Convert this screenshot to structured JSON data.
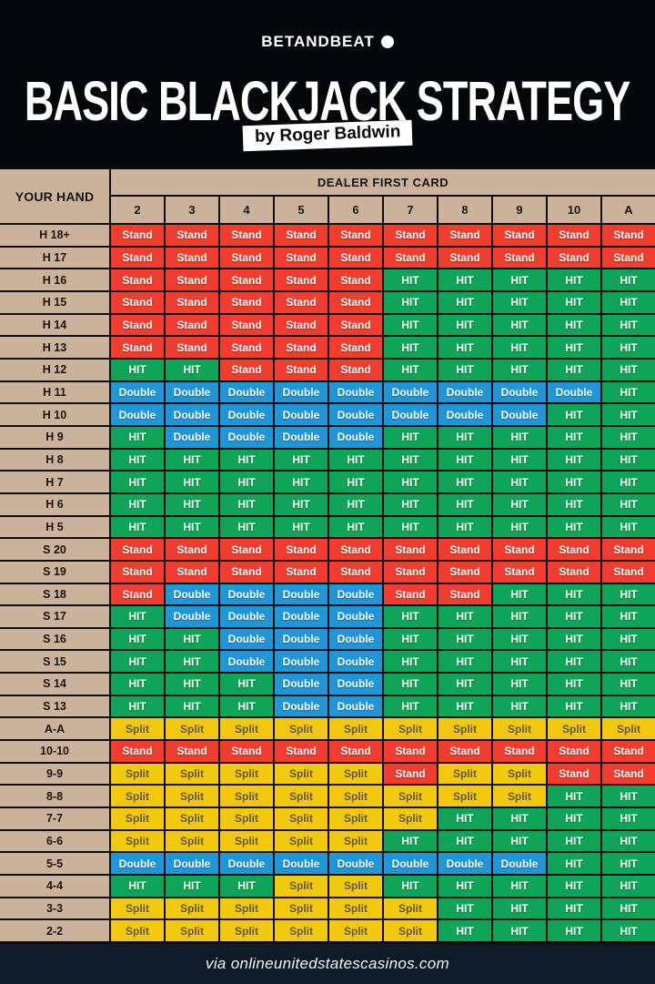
{
  "header": {
    "brand": "BETANDBEAT",
    "title": "BASIC BLACKJACK STRATEGY",
    "subtitle": "by Roger Baldwin"
  },
  "footer": {
    "credit": "via onlineunitedstatescasinos.com"
  },
  "colors": {
    "background": "#04080b",
    "footer_bar": "#0d1b28",
    "table_header_tan": "#cbb39b",
    "grid_line": "#0d0d0d",
    "stand_red": "#f13c2e",
    "hit_green": "#0fa558",
    "double_blue": "#1f96d7",
    "split_yellow": "#f3c90e",
    "split_text": "#5f584e",
    "action_text": "#ffffff"
  },
  "chart_data": {
    "type": "table",
    "title": "Basic Blackjack Strategy",
    "row_header": "YOUR HAND",
    "col_group_header": "DEALER FIRST CARD",
    "columns": [
      "2",
      "3",
      "4",
      "5",
      "6",
      "7",
      "8",
      "9",
      "10",
      "A"
    ],
    "legend": {
      "Stand": {
        "bg": "#f13c2e",
        "fg": "#ffffff"
      },
      "HIT": {
        "bg": "#0fa558",
        "fg": "#ffffff"
      },
      "Double": {
        "bg": "#1f96d7",
        "fg": "#ffffff"
      },
      "Split": {
        "bg": "#f3c90e",
        "fg": "#5f584e"
      }
    },
    "rows": [
      {
        "hand": "H 18+",
        "actions": [
          "Stand",
          "Stand",
          "Stand",
          "Stand",
          "Stand",
          "Stand",
          "Stand",
          "Stand",
          "Stand",
          "Stand"
        ]
      },
      {
        "hand": "H 17",
        "actions": [
          "Stand",
          "Stand",
          "Stand",
          "Stand",
          "Stand",
          "Stand",
          "Stand",
          "Stand",
          "Stand",
          "Stand"
        ]
      },
      {
        "hand": "H 16",
        "actions": [
          "Stand",
          "Stand",
          "Stand",
          "Stand",
          "Stand",
          "HIT",
          "HIT",
          "HIT",
          "HIT",
          "HIT"
        ]
      },
      {
        "hand": "H 15",
        "actions": [
          "Stand",
          "Stand",
          "Stand",
          "Stand",
          "Stand",
          "HIT",
          "HIT",
          "HIT",
          "HIT",
          "HIT"
        ]
      },
      {
        "hand": "H 14",
        "actions": [
          "Stand",
          "Stand",
          "Stand",
          "Stand",
          "Stand",
          "HIT",
          "HIT",
          "HIT",
          "HIT",
          "HIT"
        ]
      },
      {
        "hand": "H 13",
        "actions": [
          "Stand",
          "Stand",
          "Stand",
          "Stand",
          "Stand",
          "HIT",
          "HIT",
          "HIT",
          "HIT",
          "HIT"
        ]
      },
      {
        "hand": "H 12",
        "actions": [
          "HIT",
          "HIT",
          "Stand",
          "Stand",
          "Stand",
          "HIT",
          "HIT",
          "HIT",
          "HIT",
          "HIT"
        ]
      },
      {
        "hand": "H 11",
        "actions": [
          "Double",
          "Double",
          "Double",
          "Double",
          "Double",
          "Double",
          "Double",
          "Double",
          "Double",
          "HIT"
        ]
      },
      {
        "hand": "H 10",
        "actions": [
          "Double",
          "Double",
          "Double",
          "Double",
          "Double",
          "Double",
          "Double",
          "Double",
          "HIT",
          "HIT"
        ]
      },
      {
        "hand": "H 9",
        "actions": [
          "HIT",
          "Double",
          "Double",
          "Double",
          "Double",
          "HIT",
          "HIT",
          "HIT",
          "HIT",
          "HIT"
        ]
      },
      {
        "hand": "H 8",
        "actions": [
          "HIT",
          "HIT",
          "HIT",
          "HIT",
          "HIT",
          "HIT",
          "HIT",
          "HIT",
          "HIT",
          "HIT"
        ]
      },
      {
        "hand": "H 7",
        "actions": [
          "HIT",
          "HIT",
          "HIT",
          "HIT",
          "HIT",
          "HIT",
          "HIT",
          "HIT",
          "HIT",
          "HIT"
        ]
      },
      {
        "hand": "H 6",
        "actions": [
          "HIT",
          "HIT",
          "HIT",
          "HIT",
          "HIT",
          "HIT",
          "HIT",
          "HIT",
          "HIT",
          "HIT"
        ]
      },
      {
        "hand": "H 5",
        "actions": [
          "HIT",
          "HIT",
          "HIT",
          "HIT",
          "HIT",
          "HIT",
          "HIT",
          "HIT",
          "HIT",
          "HIT"
        ]
      },
      {
        "hand": "S 20",
        "actions": [
          "Stand",
          "Stand",
          "Stand",
          "Stand",
          "Stand",
          "Stand",
          "Stand",
          "Stand",
          "Stand",
          "Stand"
        ]
      },
      {
        "hand": "S 19",
        "actions": [
          "Stand",
          "Stand",
          "Stand",
          "Stand",
          "Stand",
          "Stand",
          "Stand",
          "Stand",
          "Stand",
          "Stand"
        ]
      },
      {
        "hand": "S 18",
        "actions": [
          "Stand",
          "Double",
          "Double",
          "Double",
          "Double",
          "Stand",
          "Stand",
          "HIT",
          "HIT",
          "HIT"
        ]
      },
      {
        "hand": "S 17",
        "actions": [
          "HIT",
          "Double",
          "Double",
          "Double",
          "Double",
          "HIT",
          "HIT",
          "HIT",
          "HIT",
          "HIT"
        ]
      },
      {
        "hand": "S 16",
        "actions": [
          "HIT",
          "HIT",
          "Double",
          "Double",
          "Double",
          "HIT",
          "HIT",
          "HIT",
          "HIT",
          "HIT"
        ]
      },
      {
        "hand": "S 15",
        "actions": [
          "HIT",
          "HIT",
          "Double",
          "Double",
          "Double",
          "HIT",
          "HIT",
          "HIT",
          "HIT",
          "HIT"
        ]
      },
      {
        "hand": "S 14",
        "actions": [
          "HIT",
          "HIT",
          "HIT",
          "Double",
          "Double",
          "HIT",
          "HIT",
          "HIT",
          "HIT",
          "HIT"
        ]
      },
      {
        "hand": "S 13",
        "actions": [
          "HIT",
          "HIT",
          "HIT",
          "Double",
          "Double",
          "HIT",
          "HIT",
          "HIT",
          "HIT",
          "HIT"
        ]
      },
      {
        "hand": "A-A",
        "actions": [
          "Split",
          "Split",
          "Split",
          "Split",
          "Split",
          "Split",
          "Split",
          "Split",
          "Split",
          "Split"
        ]
      },
      {
        "hand": "10-10",
        "actions": [
          "Stand",
          "Stand",
          "Stand",
          "Stand",
          "Stand",
          "Stand",
          "Stand",
          "Stand",
          "Stand",
          "Stand"
        ]
      },
      {
        "hand": "9-9",
        "actions": [
          "Split",
          "Split",
          "Split",
          "Split",
          "Split",
          "Stand",
          "Split",
          "Split",
          "Stand",
          "Stand"
        ]
      },
      {
        "hand": "8-8",
        "actions": [
          "Split",
          "Split",
          "Split",
          "Split",
          "Split",
          "Split",
          "Split",
          "Split",
          "HIT",
          "HIT"
        ]
      },
      {
        "hand": "7-7",
        "actions": [
          "Split",
          "Split",
          "Split",
          "Split",
          "Split",
          "Split",
          "HIT",
          "HIT",
          "HIT",
          "HIT"
        ]
      },
      {
        "hand": "6-6",
        "actions": [
          "Split",
          "Split",
          "Split",
          "Split",
          "Split",
          "HIT",
          "HIT",
          "HIT",
          "HIT",
          "HIT"
        ]
      },
      {
        "hand": "5-5",
        "actions": [
          "Double",
          "Double",
          "Double",
          "Double",
          "Double",
          "Double",
          "Double",
          "Double",
          "HIT",
          "HIT"
        ]
      },
      {
        "hand": "4-4",
        "actions": [
          "HIT",
          "HIT",
          "HIT",
          "Split",
          "Split",
          "HIT",
          "HIT",
          "HIT",
          "HIT",
          "HIT"
        ]
      },
      {
        "hand": "3-3",
        "actions": [
          "Split",
          "Split",
          "Split",
          "Split",
          "Split",
          "Split",
          "HIT",
          "HIT",
          "HIT",
          "HIT"
        ]
      },
      {
        "hand": "2-2",
        "actions": [
          "Split",
          "Split",
          "Split",
          "Split",
          "Split",
          "Split",
          "HIT",
          "HIT",
          "HIT",
          "HIT"
        ]
      }
    ]
  }
}
